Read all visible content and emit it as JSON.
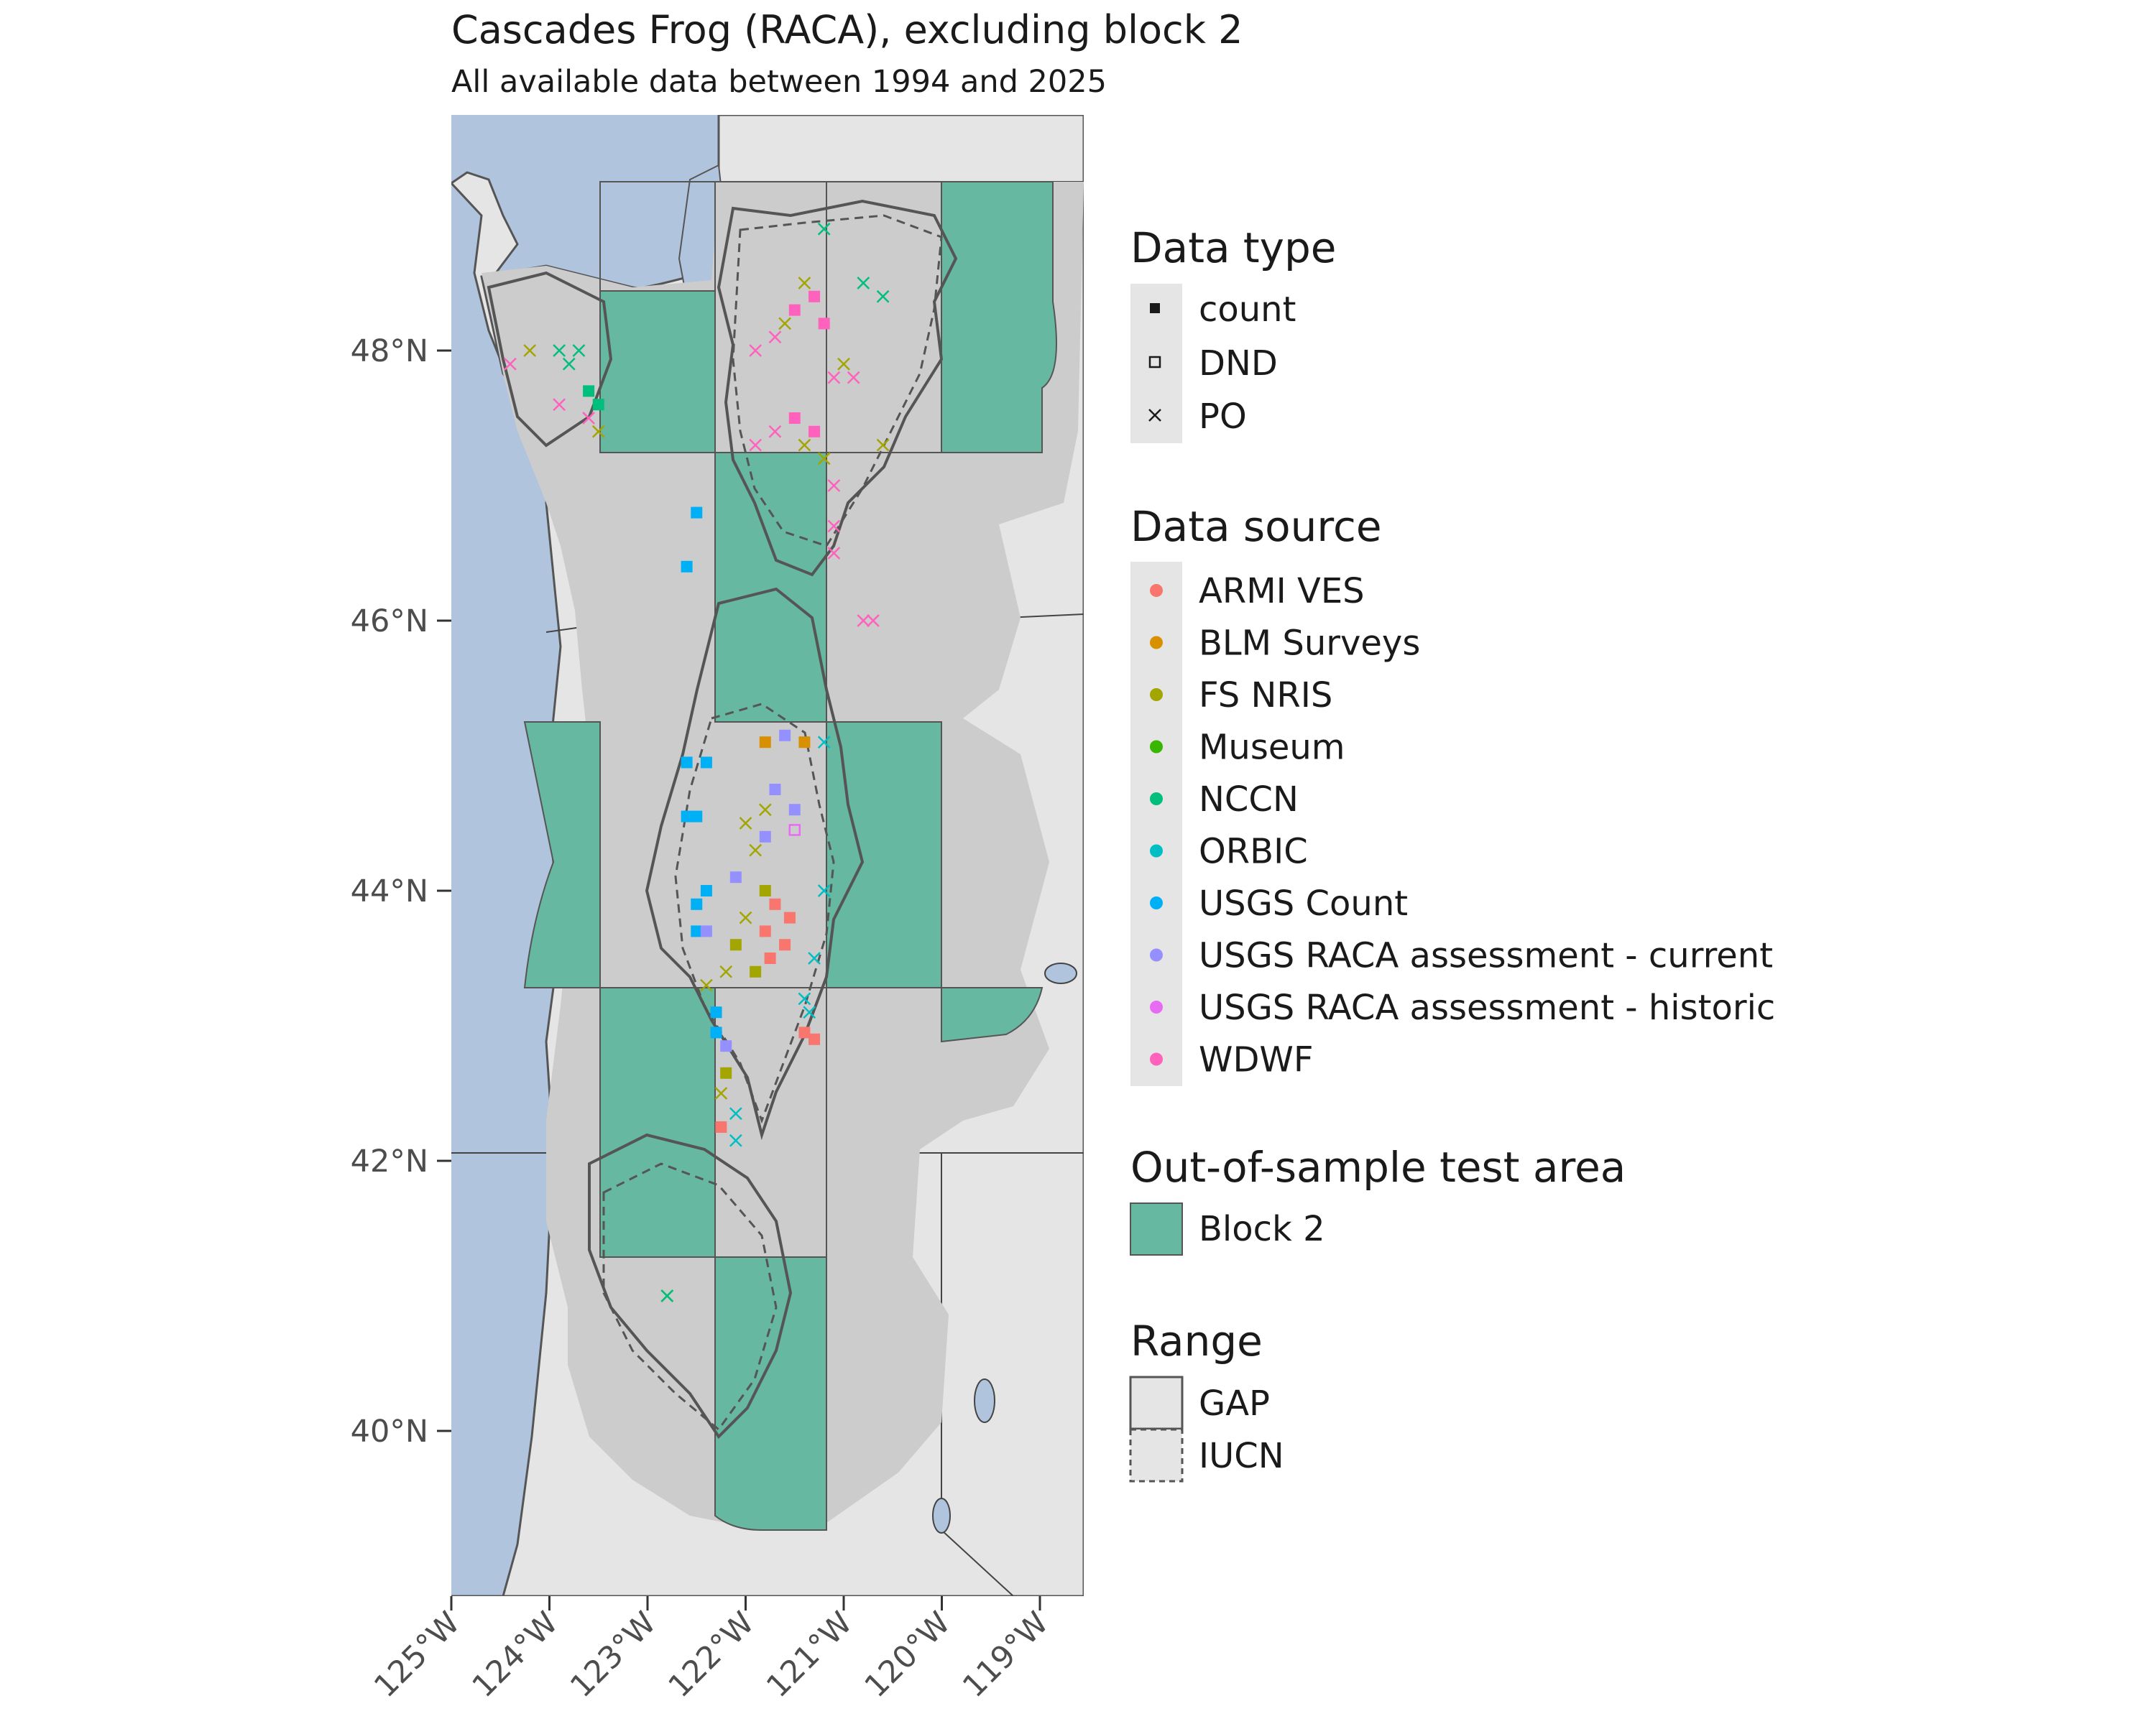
{
  "title": "Cascades Frog (RACA), excluding block 2",
  "subtitle": "All available data between 1994 and 2025",
  "axes": {
    "y_ticks": [
      "40°N",
      "42°N",
      "44°N",
      "46°N",
      "48°N"
    ],
    "x_ticks": [
      "125°W",
      "124°W",
      "123°W",
      "122°W",
      "121°W",
      "120°W",
      "119°W"
    ],
    "x_range": [
      -125,
      -118.5
    ],
    "y_range": [
      38.5,
      49.5
    ]
  },
  "colors": {
    "ocean": "#b0c4de",
    "land": "#e5e5e5",
    "range_fill": "#cccccc",
    "block": "#66b8a0"
  },
  "legend": {
    "data_type": {
      "title": "Data type",
      "items": [
        {
          "label": "count",
          "symbol": "filled-square"
        },
        {
          "label": "DND",
          "symbol": "open-square"
        },
        {
          "label": "PO",
          "symbol": "cross"
        }
      ]
    },
    "data_source": {
      "title": "Data source",
      "items": [
        {
          "label": "ARMI VES",
          "color": "#f8766d"
        },
        {
          "label": "BLM Surveys",
          "color": "#d89000"
        },
        {
          "label": "FS NRIS",
          "color": "#a3a500"
        },
        {
          "label": "Museum",
          "color": "#39b600"
        },
        {
          "label": "NCCN",
          "color": "#00bf7d"
        },
        {
          "label": "ORBIC",
          "color": "#00bfc4"
        },
        {
          "label": "USGS Count",
          "color": "#00b0f6"
        },
        {
          "label": "USGS RACA assessment - current",
          "color": "#9590ff"
        },
        {
          "label": "USGS RACA assessment - historic",
          "color": "#e76bf3"
        },
        {
          "label": "WDWF",
          "color": "#ff62bc"
        }
      ]
    },
    "test_area": {
      "title": "Out-of-sample test area",
      "items": [
        {
          "label": "Block 2"
        }
      ]
    },
    "range": {
      "title": "Range",
      "items": [
        {
          "label": "GAP",
          "line": "solid"
        },
        {
          "label": "IUCN",
          "line": "dashed"
        }
      ]
    }
  },
  "points": [
    {
      "source": "WDWF",
      "type": "PO",
      "lon": -124.4,
      "lat": 47.9
    },
    {
      "source": "FS NRIS",
      "type": "PO",
      "lon": -124.2,
      "lat": 48.0
    },
    {
      "source": "NCCN",
      "type": "PO",
      "lon": -123.9,
      "lat": 48.0
    },
    {
      "source": "NCCN",
      "type": "PO",
      "lon": -123.8,
      "lat": 47.9
    },
    {
      "source": "NCCN",
      "type": "PO",
      "lon": -123.7,
      "lat": 48.0
    },
    {
      "source": "NCCN",
      "type": "count",
      "lon": -123.6,
      "lat": 47.7
    },
    {
      "source": "NCCN",
      "type": "count",
      "lon": -123.5,
      "lat": 47.6
    },
    {
      "source": "WDWF",
      "type": "PO",
      "lon": -123.6,
      "lat": 47.5
    },
    {
      "source": "WDWF",
      "type": "PO",
      "lon": -123.9,
      "lat": 47.6
    },
    {
      "source": "FS NRIS",
      "type": "PO",
      "lon": -123.5,
      "lat": 47.4
    },
    {
      "source": "USGS Count",
      "type": "count",
      "lon": -122.5,
      "lat": 46.8
    },
    {
      "source": "USGS Count",
      "type": "count",
      "lon": -122.6,
      "lat": 46.4
    },
    {
      "source": "NCCN",
      "type": "PO",
      "lon": -121.2,
      "lat": 48.9
    },
    {
      "source": "WDWF",
      "type": "count",
      "lon": -121.3,
      "lat": 48.4
    },
    {
      "source": "WDWF",
      "type": "count",
      "lon": -121.5,
      "lat": 48.3
    },
    {
      "source": "FS NRIS",
      "type": "PO",
      "lon": -121.4,
      "lat": 48.5
    },
    {
      "source": "WDWF",
      "type": "PO",
      "lon": -121.7,
      "lat": 48.1
    },
    {
      "source": "WDWF",
      "type": "PO",
      "lon": -121.9,
      "lat": 48.0
    },
    {
      "source": "FS NRIS",
      "type": "PO",
      "lon": -121.6,
      "lat": 48.2
    },
    {
      "source": "WDWF",
      "type": "count",
      "lon": -121.2,
      "lat": 48.2
    },
    {
      "source": "WDWF",
      "type": "PO",
      "lon": -121.1,
      "lat": 47.8
    },
    {
      "source": "FS NRIS",
      "type": "PO",
      "lon": -121.0,
      "lat": 47.9
    },
    {
      "source": "WDWF",
      "type": "PO",
      "lon": -120.9,
      "lat": 47.8
    },
    {
      "source": "NCCN",
      "type": "PO",
      "lon": -120.8,
      "lat": 48.5
    },
    {
      "source": "NCCN",
      "type": "PO",
      "lon": -120.6,
      "lat": 48.4
    },
    {
      "source": "WDWF",
      "type": "count",
      "lon": -121.5,
      "lat": 47.5
    },
    {
      "source": "WDWF",
      "type": "count",
      "lon": -121.3,
      "lat": 47.4
    },
    {
      "source": "FS NRIS",
      "type": "PO",
      "lon": -121.4,
      "lat": 47.3
    },
    {
      "source": "WDWF",
      "type": "PO",
      "lon": -121.7,
      "lat": 47.4
    },
    {
      "source": "WDWF",
      "type": "PO",
      "lon": -121.9,
      "lat": 47.3
    },
    {
      "source": "FS NRIS",
      "type": "PO",
      "lon": -121.2,
      "lat": 47.2
    },
    {
      "source": "WDWF",
      "type": "PO",
      "lon": -121.1,
      "lat": 47.0
    },
    {
      "source": "FS NRIS",
      "type": "PO",
      "lon": -120.6,
      "lat": 47.3
    },
    {
      "source": "WDWF",
      "type": "PO",
      "lon": -121.1,
      "lat": 46.7
    },
    {
      "source": "WDWF",
      "type": "PO",
      "lon": -121.1,
      "lat": 46.5
    },
    {
      "source": "WDWF",
      "type": "PO",
      "lon": -120.8,
      "lat": 46.0
    },
    {
      "source": "WDWF",
      "type": "PO",
      "lon": -120.7,
      "lat": 46.0
    },
    {
      "source": "BLM Surveys",
      "type": "count",
      "lon": -121.8,
      "lat": 45.1
    },
    {
      "source": "BLM Surveys",
      "type": "count",
      "lon": -121.4,
      "lat": 45.1
    },
    {
      "source": "USGS RACA assessment - current",
      "type": "count",
      "lon": -121.6,
      "lat": 45.15
    },
    {
      "source": "ORBIC",
      "type": "PO",
      "lon": -121.2,
      "lat": 45.1
    },
    {
      "source": "USGS Count",
      "type": "count",
      "lon": -122.4,
      "lat": 44.95
    },
    {
      "source": "USGS Count",
      "type": "count",
      "lon": -122.6,
      "lat": 44.95
    },
    {
      "source": "USGS Count",
      "type": "count",
      "lon": -122.6,
      "lat": 44.55
    },
    {
      "source": "USGS Count",
      "type": "count",
      "lon": -122.5,
      "lat": 44.55
    },
    {
      "source": "USGS Count",
      "type": "count",
      "lon": -122.4,
      "lat": 44.0
    },
    {
      "source": "USGS Count",
      "type": "count",
      "lon": -122.5,
      "lat": 43.9
    },
    {
      "source": "USGS Count",
      "type": "count",
      "lon": -122.5,
      "lat": 43.7
    },
    {
      "source": "FS NRIS",
      "type": "PO",
      "lon": -122.0,
      "lat": 44.5
    },
    {
      "source": "FS NRIS",
      "type": "PO",
      "lon": -121.8,
      "lat": 44.6
    },
    {
      "source": "FS NRIS",
      "type": "PO",
      "lon": -121.9,
      "lat": 44.3
    },
    {
      "source": "FS NRIS",
      "type": "count",
      "lon": -121.8,
      "lat": 44.0
    },
    {
      "source": "FS NRIS",
      "type": "PO",
      "lon": -122.0,
      "lat": 43.8
    },
    {
      "source": "FS NRIS",
      "type": "count",
      "lon": -122.1,
      "lat": 43.6
    },
    {
      "source": "FS NRIS",
      "type": "PO",
      "lon": -122.2,
      "lat": 43.4
    },
    {
      "source": "FS NRIS",
      "type": "PO",
      "lon": -122.4,
      "lat": 43.3
    },
    {
      "source": "FS NRIS",
      "type": "count",
      "lon": -121.9,
      "lat": 43.4
    },
    {
      "source": "USGS RACA assessment - current",
      "type": "count",
      "lon": -121.7,
      "lat": 44.75
    },
    {
      "source": "USGS RACA assessment - current",
      "type": "count",
      "lon": -121.5,
      "lat": 44.6
    },
    {
      "source": "USGS RACA assessment - historic",
      "type": "DND",
      "lon": -121.5,
      "lat": 44.45
    },
    {
      "source": "USGS RACA assessment - current",
      "type": "count",
      "lon": -121.8,
      "lat": 44.4
    },
    {
      "source": "USGS RACA assessment - current",
      "type": "count",
      "lon": -122.1,
      "lat": 44.1
    },
    {
      "source": "USGS RACA assessment - current",
      "type": "count",
      "lon": -122.4,
      "lat": 43.7
    },
    {
      "source": "ARMI VES",
      "type": "count",
      "lon": -121.55,
      "lat": 43.8
    },
    {
      "source": "ARMI VES",
      "type": "count",
      "lon": -121.6,
      "lat": 43.6
    },
    {
      "source": "ARMI VES",
      "type": "count",
      "lon": -121.7,
      "lat": 43.9
    },
    {
      "source": "ARMI VES",
      "type": "count",
      "lon": -121.8,
      "lat": 43.7
    },
    {
      "source": "ARMI VES",
      "type": "count",
      "lon": -121.75,
      "lat": 43.5
    },
    {
      "source": "ORBIC",
      "type": "PO",
      "lon": -121.3,
      "lat": 43.5
    },
    {
      "source": "ORBIC",
      "type": "PO",
      "lon": -121.4,
      "lat": 43.2
    },
    {
      "source": "ORBIC",
      "type": "PO",
      "lon": -121.2,
      "lat": 44.0
    },
    {
      "source": "ORBIC",
      "type": "PO",
      "lon": -121.35,
      "lat": 43.1
    },
    {
      "source": "ARMI VES",
      "type": "count",
      "lon": -121.4,
      "lat": 42.95
    },
    {
      "source": "ARMI VES",
      "type": "count",
      "lon": -121.3,
      "lat": 42.9
    },
    {
      "source": "USGS Count",
      "type": "count",
      "lon": -122.3,
      "lat": 43.1
    },
    {
      "source": "USGS Count",
      "type": "count",
      "lon": -122.3,
      "lat": 42.95
    },
    {
      "source": "USGS RACA assessment - current",
      "type": "count",
      "lon": -122.2,
      "lat": 42.85
    },
    {
      "source": "FS NRIS",
      "type": "count",
      "lon": -122.2,
      "lat": 42.65
    },
    {
      "source": "FS NRIS",
      "type": "PO",
      "lon": -122.25,
      "lat": 42.5
    },
    {
      "source": "ARMI VES",
      "type": "count",
      "lon": -122.25,
      "lat": 42.25
    },
    {
      "source": "ORBIC",
      "type": "PO",
      "lon": -122.1,
      "lat": 42.35
    },
    {
      "source": "ORBIC",
      "type": "PO",
      "lon": -122.1,
      "lat": 42.15
    },
    {
      "source": "Museum",
      "type": "PO",
      "lon": -122.8,
      "lat": 41.0
    },
    {
      "source": "NCCN",
      "type": "PO",
      "lon": -122.8,
      "lat": 41.0
    }
  ]
}
